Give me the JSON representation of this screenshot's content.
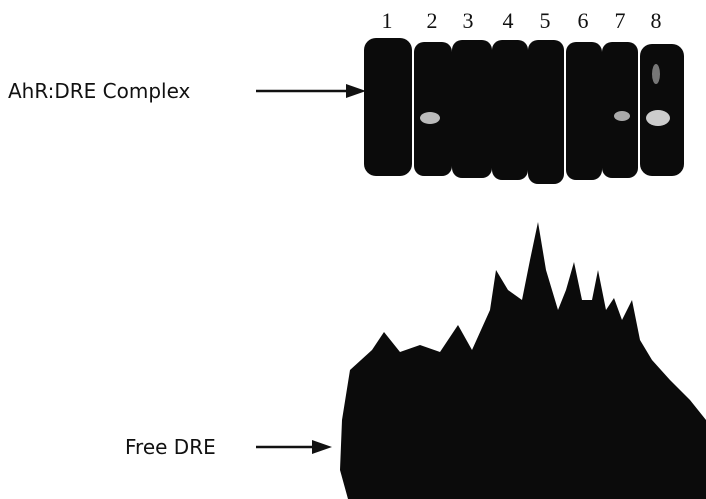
{
  "lanes": [
    "1",
    "2",
    "3",
    "4",
    "5",
    "6",
    "7",
    "8"
  ],
  "labels": {
    "complex": "AhR:DRE Complex",
    "free": "Free DRE"
  }
}
